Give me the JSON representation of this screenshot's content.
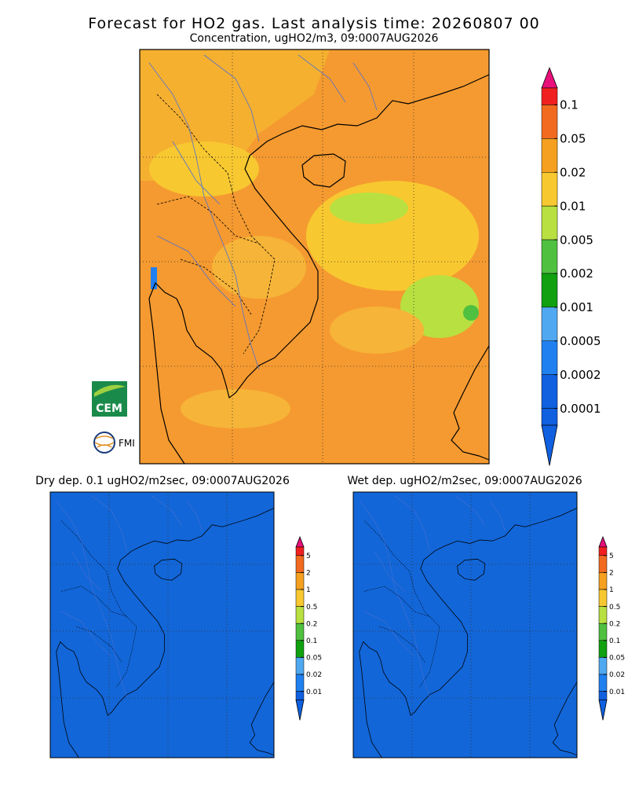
{
  "header": {
    "title": "Forecast for HO2 gas. Last analysis time: 20260807 00",
    "subtitle": "Concentration, ugHO2/m3, 09:0007AUG2026"
  },
  "main_legend": {
    "labels": [
      "0.1",
      "0.05",
      "0.02",
      "0.01",
      "0.005",
      "0.002",
      "0.001",
      "0.0005",
      "0.0002",
      "0.0001"
    ]
  },
  "panels": [
    {
      "title": "Dry dep. 0.1 ugHO2/m2sec, 09:0007AUG2026",
      "legend": [
        "5",
        "2",
        "1",
        "0.5",
        "0.2",
        "0.1",
        "0.05",
        "0.02",
        "0.01"
      ]
    },
    {
      "title": "Wet dep. ugHO2/m2sec, 09:0007AUG2026",
      "legend": [
        "5",
        "2",
        "1",
        "0.5",
        "0.2",
        "0.1",
        "0.05",
        "0.02",
        "0.01"
      ]
    }
  ],
  "logos": [
    "CEM",
    "FMI"
  ]
}
